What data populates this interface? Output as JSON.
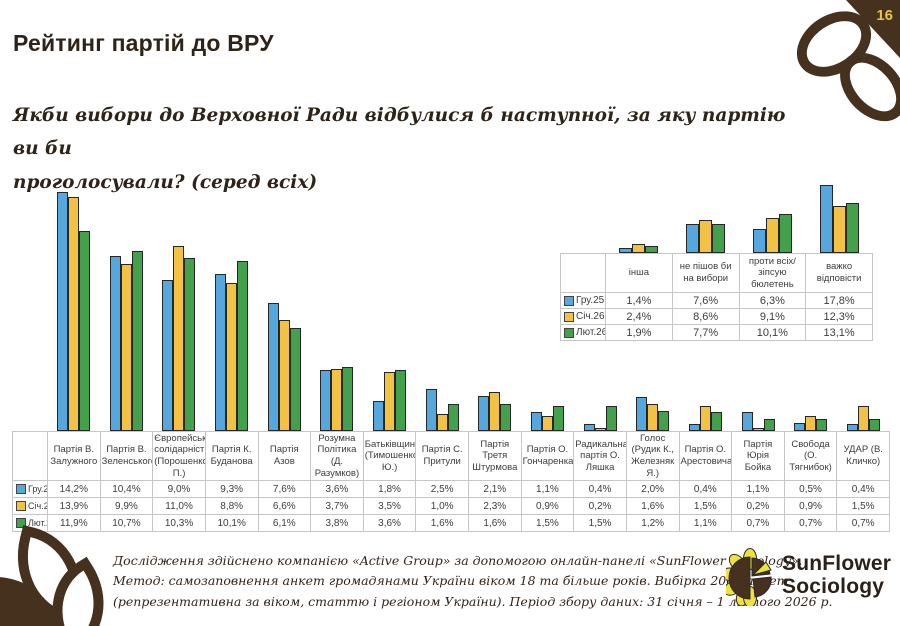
{
  "page_number": "16",
  "title": "Рейтинг партій до ВРУ",
  "subtitle": {
    "line1": "Якби вибори до Верховної Ради відбулися б наступної, за яку партію ви би",
    "line2": "проголосували? (серед всіх)"
  },
  "chart_data": [
    {
      "type": "bar",
      "title": "",
      "categories": [
        "Партія В. Залужного",
        "Партія В. Зеленського",
        "Європейська солідарність (Порошенко П.)",
        "Партія К. Буданова",
        "Партія Азов",
        "Розумна Політика (Д. Разумков)",
        "Батьківщина (Тимошенко Ю.)",
        "Партія С. Притули",
        "Партія Третя Штурмова",
        "Партія О. Гончаренка",
        "Радикальна партія О. Ляшка",
        "Голос (Рудик К., Железняк Я.)",
        "Партія О. Арестовича",
        "Партія Юрія Бойка",
        "Свобода (О. Тягнибок)",
        "УДАР (В. Кличко)"
      ],
      "series": [
        {
          "name": "Гру.25",
          "color": "#55A7DD",
          "values": [
            14.2,
            10.4,
            9.0,
            9.3,
            7.6,
            3.6,
            1.8,
            2.5,
            2.1,
            1.1,
            0.4,
            2.0,
            0.4,
            1.1,
            0.5,
            0.4
          ]
        },
        {
          "name": "Січ.26",
          "color": "#F1C244",
          "values": [
            13.9,
            9.9,
            11.0,
            8.8,
            6.6,
            3.7,
            3.5,
            1.0,
            2.3,
            0.9,
            0.2,
            1.6,
            1.5,
            0.2,
            0.9,
            1.5
          ]
        },
        {
          "name": "Лют.26",
          "color": "#43A04B",
          "values": [
            11.9,
            10.7,
            10.3,
            10.1,
            6.1,
            3.8,
            3.6,
            1.6,
            1.6,
            1.5,
            1.5,
            1.2,
            1.1,
            0.7,
            0.7,
            0.7
          ]
        }
      ],
      "value_format": "one-decimal-comma-percent",
      "ylim": [
        0,
        14.7
      ],
      "grid": false,
      "legend_position": "table-left-column"
    },
    {
      "type": "bar",
      "title": "",
      "categories": [
        "інша",
        "не пішов би на вибори",
        "проти всіх/зіпсую бюлетень",
        "важко відповісти"
      ],
      "series": [
        {
          "name": "Гру.25",
          "color": "#55A7DD",
          "values": [
            1.4,
            7.6,
            6.3,
            17.8
          ]
        },
        {
          "name": "Січ.26",
          "color": "#F1C244",
          "values": [
            2.4,
            8.6,
            9.1,
            12.3
          ]
        },
        {
          "name": "Лют.26",
          "color": "#43A04B",
          "values": [
            1.9,
            7.7,
            10.1,
            13.1
          ]
        }
      ],
      "value_format": "one-decimal-comma-percent",
      "ylim": [
        0,
        17.8
      ],
      "grid": false,
      "legend_position": "table-left-column"
    }
  ],
  "footer": {
    "lines": [
      "Дослідження здійснено компанією «Active Group» за допомогою онлайн-панелі «SunFlower Sociology».",
      "Метод: самозаповнення анкет громадянами України віком 18 та більше років. Вибірка 2000 анкет",
      "(репрезентативна за віком, статтю і регіоном України). Період збору даних: 31 січня – 1 лютого 2026 р."
    ]
  },
  "logo": {
    "line1": "SunFlower",
    "line2": "Sociology"
  },
  "colors": {
    "brand_brown": "#46301E",
    "gold": "#E9C43F",
    "series_dec25": "#55A7DD",
    "series_jan26": "#F1C244",
    "series_feb26": "#43A04B"
  }
}
